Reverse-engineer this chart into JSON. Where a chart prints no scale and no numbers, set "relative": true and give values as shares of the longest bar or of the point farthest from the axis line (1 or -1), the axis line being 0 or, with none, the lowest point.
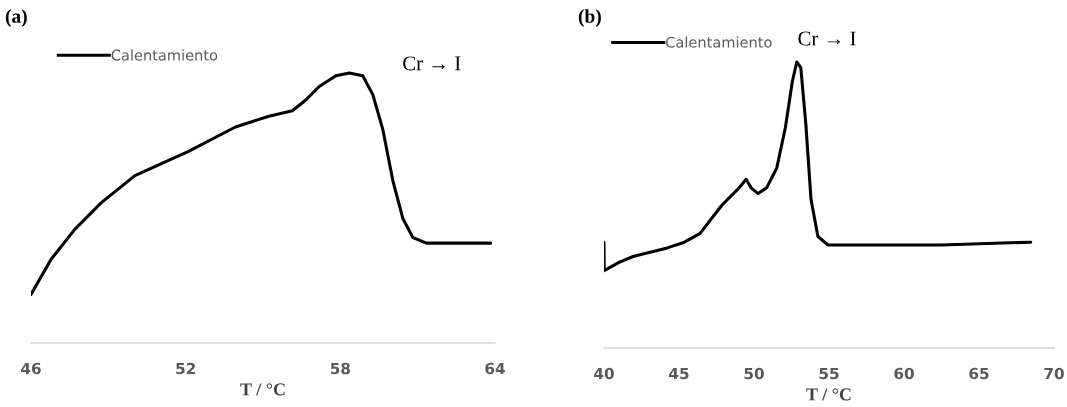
{
  "chart_data": [
    {
      "type": "line",
      "title": "(a)",
      "xlabel": "T / °C",
      "relative": true,
      "xlim": [
        46,
        64
      ],
      "xticks": [
        46,
        52,
        58,
        64
      ],
      "legend": "top left",
      "grid": false,
      "annotations": [
        "Cr → I"
      ],
      "series": [
        {
          "name": "Calentamiento",
          "color": "#000000",
          "x": [
            46,
            46.78,
            47.69,
            48.73,
            50.03,
            52.11,
            53.93,
            55.23,
            56.14,
            56.66,
            57.18,
            57.83,
            58.35,
            58.87,
            59.26,
            59.65,
            60.04,
            60.43,
            60.82,
            61.34,
            62.38,
            63.83
          ],
          "values": [
            0.18,
            0.31,
            0.42,
            0.52,
            0.62,
            0.71,
            0.8,
            0.84,
            0.86,
            0.9,
            0.95,
            0.99,
            1,
            0.99,
            0.92,
            0.79,
            0.6,
            0.46,
            0.39,
            0.37,
            0.37,
            0.37
          ]
        }
      ]
    },
    {
      "type": "line",
      "title": "(b)",
      "xlabel": "T / °C",
      "relative": true,
      "xlim": [
        40,
        70
      ],
      "xticks": [
        40,
        45,
        50,
        55,
        60,
        65,
        70
      ],
      "legend": "top left",
      "grid": false,
      "annotations": [
        "Cr → I"
      ],
      "series": [
        {
          "name": "Calentamiento",
          "color": "#000000",
          "x": [
            40,
            40.01,
            41.03,
            41.94,
            44.22,
            45.36,
            46.39,
            47.87,
            49.01,
            49.47,
            49.81,
            50.27,
            50.84,
            51.52,
            52.09,
            52.55,
            52.85,
            53.12,
            53.46,
            53.8,
            54.26,
            54.94,
            56.77,
            62.47,
            68.45
          ],
          "values": [
            0.37,
            0.27,
            0.3,
            0.32,
            0.35,
            0.37,
            0.4,
            0.5,
            0.56,
            0.59,
            0.56,
            0.54,
            0.56,
            0.63,
            0.77,
            0.93,
            1,
            0.98,
            0.78,
            0.52,
            0.39,
            0.36,
            0.36,
            0.36,
            0.37
          ]
        }
      ]
    }
  ]
}
